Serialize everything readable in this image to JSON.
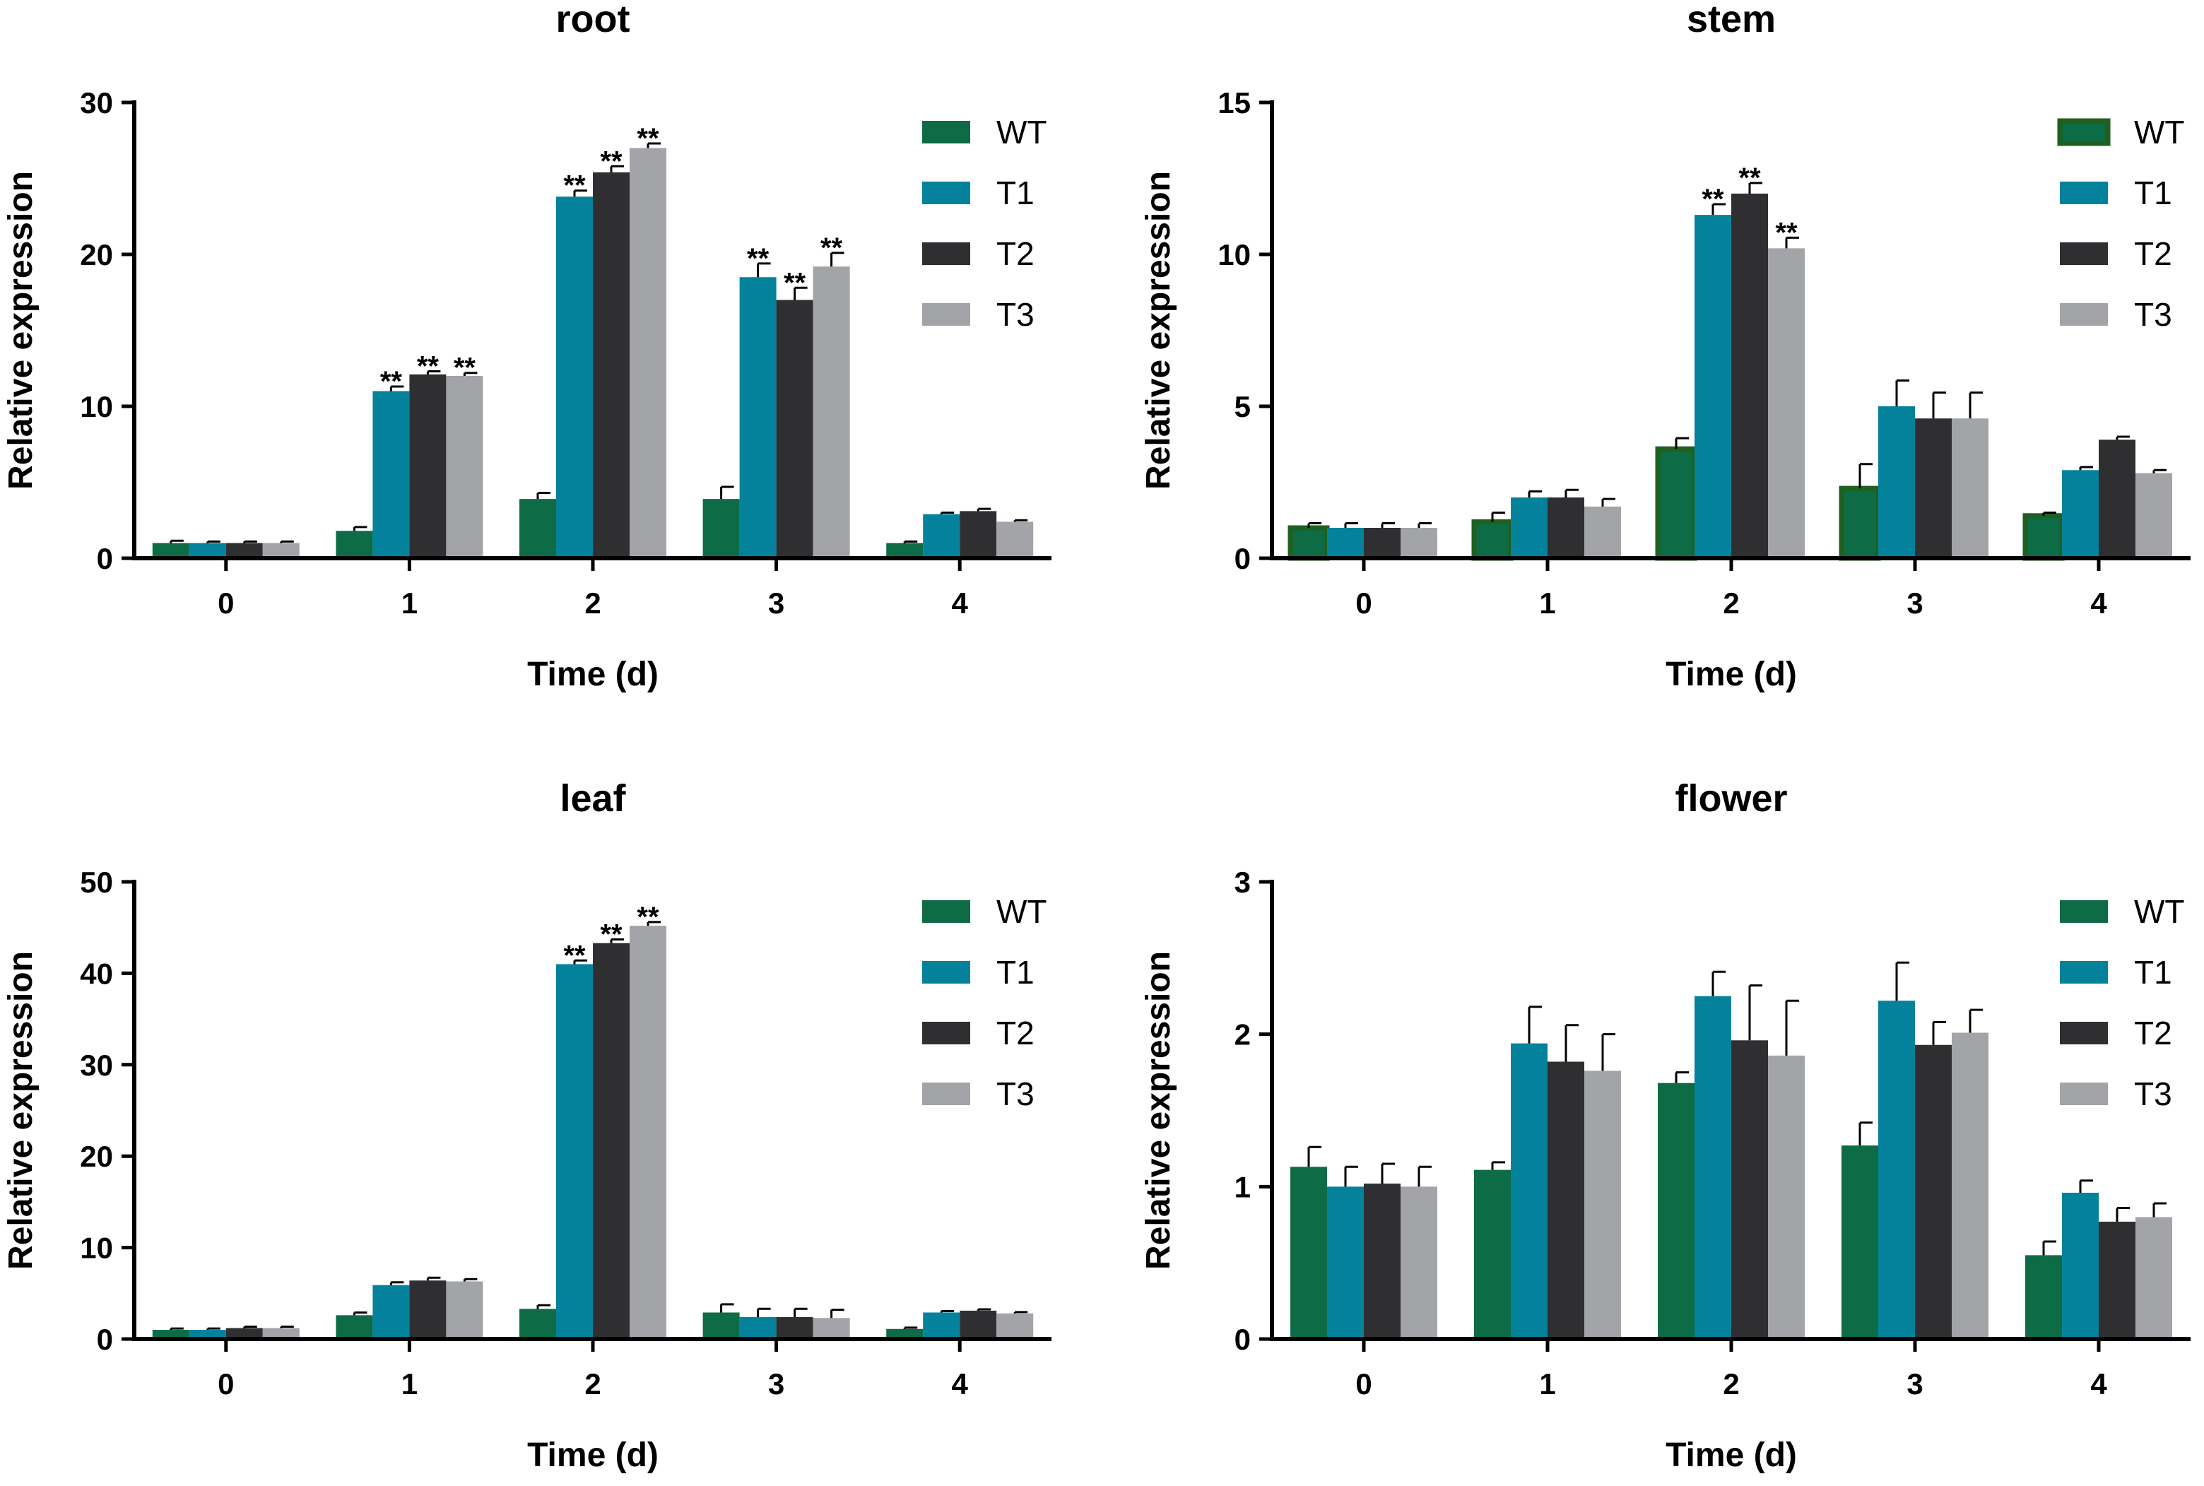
{
  "chart_data": [
    {
      "type": "bar",
      "title": "root",
      "xlabel": "Time (d)",
      "ylabel": "Relative expression",
      "categories": [
        "0",
        "1",
        "2",
        "3",
        "4"
      ],
      "ylim": [
        0,
        30
      ],
      "yticks": [
        "0",
        "10",
        "20",
        "30"
      ],
      "series": [
        {
          "name": "WT",
          "values": [
            1.0,
            1.8,
            3.9,
            3.9,
            1.0
          ],
          "errors": [
            0.15,
            0.25,
            0.4,
            0.8,
            0.1
          ]
        },
        {
          "name": "T1",
          "values": [
            1.0,
            11.0,
            23.8,
            18.5,
            2.9
          ],
          "errors": [
            0.1,
            0.3,
            0.4,
            0.9,
            0.1
          ]
        },
        {
          "name": "T2",
          "values": [
            1.0,
            12.1,
            25.4,
            17.0,
            3.1
          ],
          "errors": [
            0.1,
            0.2,
            0.4,
            0.8,
            0.15
          ]
        },
        {
          "name": "T3",
          "values": [
            1.0,
            12.0,
            27.0,
            19.2,
            2.4
          ],
          "errors": [
            0.1,
            0.2,
            0.3,
            0.9,
            0.1
          ]
        }
      ],
      "significance": [
        {
          "category": "1",
          "series": "T1",
          "label": "**"
        },
        {
          "category": "1",
          "series": "T2",
          "label": "**"
        },
        {
          "category": "1",
          "series": "T3",
          "label": "**"
        },
        {
          "category": "2",
          "series": "T1",
          "label": "**"
        },
        {
          "category": "2",
          "series": "T2",
          "label": "**"
        },
        {
          "category": "2",
          "series": "T3",
          "label": "**"
        },
        {
          "category": "3",
          "series": "T1",
          "label": "**"
        },
        {
          "category": "3",
          "series": "T2",
          "label": "**"
        },
        {
          "category": "3",
          "series": "T3",
          "label": "**"
        }
      ]
    },
    {
      "type": "bar",
      "title": "stem",
      "xlabel": "Time (d)",
      "ylabel": "Relative expression",
      "categories": [
        "0",
        "1",
        "2",
        "3",
        "4"
      ],
      "ylim": [
        0,
        15
      ],
      "yticks": [
        "0",
        "5",
        "10",
        "15"
      ],
      "wt_outlined": true,
      "series": [
        {
          "name": "WT",
          "values": [
            1.0,
            1.2,
            3.6,
            2.3,
            1.4
          ],
          "errors": [
            0.15,
            0.3,
            0.35,
            0.8,
            0.1
          ]
        },
        {
          "name": "T1",
          "values": [
            1.0,
            2.0,
            11.3,
            5.0,
            2.9
          ],
          "errors": [
            0.15,
            0.2,
            0.35,
            0.85,
            0.1
          ]
        },
        {
          "name": "T2",
          "values": [
            1.0,
            2.0,
            12.0,
            4.6,
            3.9
          ],
          "errors": [
            0.15,
            0.25,
            0.35,
            0.85,
            0.1
          ]
        },
        {
          "name": "T3",
          "values": [
            1.0,
            1.7,
            10.2,
            4.6,
            2.8
          ],
          "errors": [
            0.15,
            0.25,
            0.35,
            0.85,
            0.1
          ]
        }
      ],
      "significance": [
        {
          "category": "2",
          "series": "T1",
          "label": "**"
        },
        {
          "category": "2",
          "series": "T2",
          "label": "**"
        },
        {
          "category": "2",
          "series": "T3",
          "label": "**"
        }
      ]
    },
    {
      "type": "bar",
      "title": "leaf",
      "xlabel": "Time (d)",
      "ylabel": "Relative expression",
      "categories": [
        "0",
        "1",
        "2",
        "3",
        "4"
      ],
      "ylim": [
        0,
        50
      ],
      "yticks": [
        "0",
        "10",
        "20",
        "30",
        "40",
        "50"
      ],
      "series": [
        {
          "name": "WT",
          "values": [
            1.0,
            2.6,
            3.3,
            2.9,
            1.1
          ],
          "errors": [
            0.15,
            0.3,
            0.4,
            0.9,
            0.15
          ]
        },
        {
          "name": "T1",
          "values": [
            1.0,
            5.9,
            41.0,
            2.4,
            2.9
          ],
          "errors": [
            0.15,
            0.3,
            0.4,
            0.9,
            0.15
          ]
        },
        {
          "name": "T2",
          "values": [
            1.2,
            6.4,
            43.3,
            2.4,
            3.1
          ],
          "errors": [
            0.15,
            0.3,
            0.4,
            0.9,
            0.15
          ]
        },
        {
          "name": "T3",
          "values": [
            1.2,
            6.3,
            45.2,
            2.3,
            2.8
          ],
          "errors": [
            0.15,
            0.25,
            0.4,
            0.9,
            0.15
          ]
        }
      ],
      "significance": [
        {
          "category": "2",
          "series": "T1",
          "label": "**"
        },
        {
          "category": "2",
          "series": "T2",
          "label": "**"
        },
        {
          "category": "2",
          "series": "T3",
          "label": "**"
        }
      ]
    },
    {
      "type": "bar",
      "title": "flower",
      "xlabel": "Time (d)",
      "ylabel": "Relative expression",
      "categories": [
        "0",
        "1",
        "2",
        "3",
        "4"
      ],
      "ylim": [
        0,
        3
      ],
      "yticks": [
        "0",
        "1",
        "2",
        "3"
      ],
      "series": [
        {
          "name": "WT",
          "values": [
            1.13,
            1.11,
            1.68,
            1.27,
            0.55
          ],
          "errors": [
            0.13,
            0.05,
            0.07,
            0.15,
            0.09
          ]
        },
        {
          "name": "T1",
          "values": [
            1.0,
            1.94,
            2.25,
            2.22,
            0.96
          ],
          "errors": [
            0.13,
            0.24,
            0.16,
            0.25,
            0.08
          ]
        },
        {
          "name": "T2",
          "values": [
            1.02,
            1.82,
            1.96,
            1.93,
            0.77
          ],
          "errors": [
            0.13,
            0.24,
            0.36,
            0.15,
            0.09
          ]
        },
        {
          "name": "T3",
          "values": [
            1.0,
            1.76,
            1.86,
            2.01,
            0.8
          ],
          "errors": [
            0.13,
            0.24,
            0.36,
            0.15,
            0.09
          ]
        }
      ],
      "significance": []
    }
  ],
  "colors": {
    "WT": "#0d6b45",
    "T1": "#05829b",
    "T2": "#2f2f31",
    "T3": "#a3a4a8",
    "axis": "#000000",
    "wt_outline": "#1f5f1f"
  }
}
